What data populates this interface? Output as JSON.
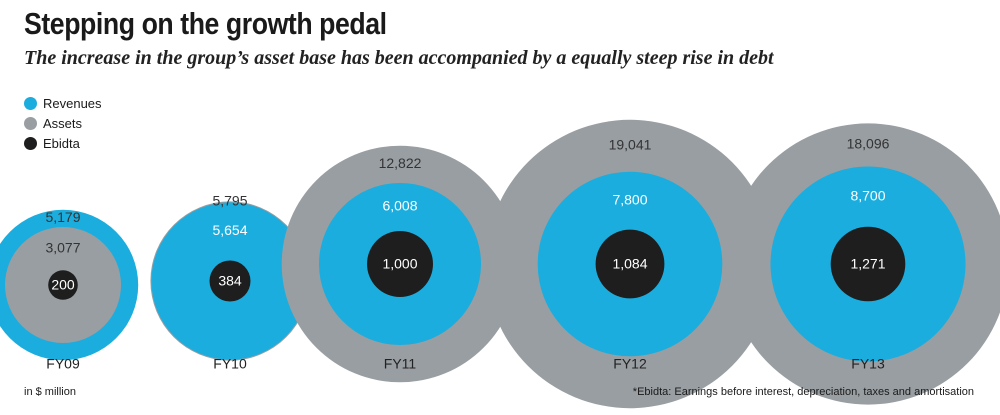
{
  "header": {
    "title": "Stepping on the growth pedal",
    "subtitle": "The increase in the group’s asset base has been accompanied by a equally steep rise in debt"
  },
  "footer": {
    "unit_note": "in $ million",
    "footnote": "*Ebidta: Earnings before interest, depreciation, taxes and amortisation"
  },
  "colors": {
    "revenues": "#1badde",
    "assets": "#999ea2",
    "ebidta": "#1e1e1e"
  },
  "chart_data": {
    "type": "bubble",
    "title": "Stepping on the growth pedal",
    "legend": [
      {
        "key": "revenues",
        "label": "Revenues"
      },
      {
        "key": "assets",
        "label": "Assets"
      },
      {
        "key": "ebidta",
        "label": "Ebidta"
      }
    ],
    "legend_position": "top-left",
    "categories": [
      "FY09",
      "FY10",
      "FY11",
      "FY12",
      "FY13"
    ],
    "series": [
      {
        "name": "Revenues",
        "values": [
          5179,
          5654,
          6008,
          7800,
          8700
        ]
      },
      {
        "name": "Assets",
        "values": [
          3077,
          5795,
          12822,
          19041,
          18096
        ]
      },
      {
        "name": "Ebidta",
        "values": [
          200,
          384,
          1000,
          1084,
          1271
        ]
      }
    ],
    "labels": [
      {
        "outer": "5,179",
        "middle": "3,077",
        "inner": "200"
      },
      {
        "outer": "5,795",
        "middle": "5,654",
        "inner": "384"
      },
      {
        "outer": "12,822",
        "middle": "6,008",
        "inner": "1,000"
      },
      {
        "outer": "19,041",
        "middle": "7,800",
        "inner": "1,084"
      },
      {
        "outer": "18,096",
        "middle": "8,700",
        "inner": "1,271"
      }
    ],
    "unit": "in $ million"
  }
}
